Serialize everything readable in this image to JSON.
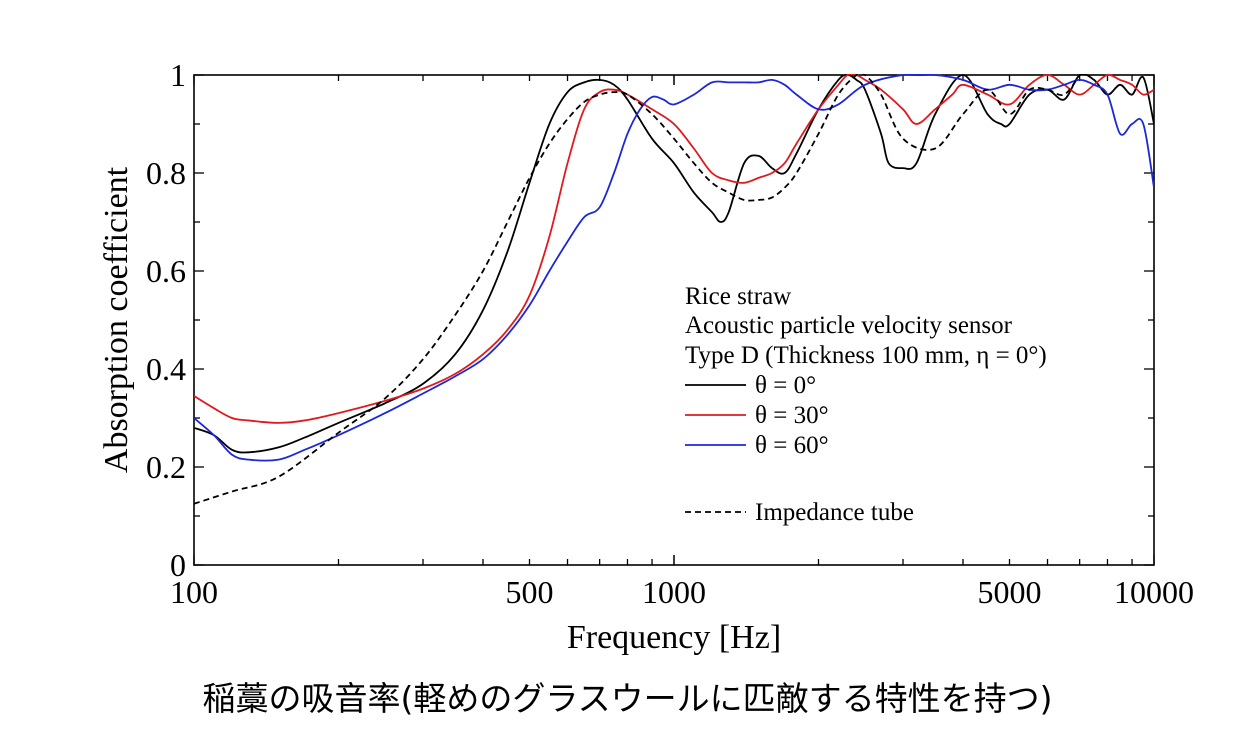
{
  "caption": "稲藁の吸音率(軽めのグラスウールに匹敵する特性を持つ)",
  "chart_data": {
    "type": "line",
    "title": "",
    "xlabel": "Frequency [Hz]",
    "ylabel": "Absorption coefficient",
    "xscale": "log",
    "xlim": [
      100,
      10000
    ],
    "ylim": [
      0,
      1
    ],
    "x_tick_labels": [
      "100",
      "500",
      "1000",
      "5000",
      "10000"
    ],
    "y_tick_labels": [
      "0",
      "0.2",
      "0.4",
      "0.6",
      "0.8",
      "1"
    ],
    "grid": false,
    "legend_placement": "center-right",
    "legend_header": [
      "Rice straw",
      "Acoustic particle velocity sensor",
      "Type D (Thickness 100 mm, η = 0°)"
    ],
    "series": [
      {
        "name": "θ = 0°",
        "color": "#000000",
        "dash": "solid",
        "x": [
          100,
          110,
          120,
          130,
          150,
          170,
          200,
          250,
          300,
          350,
          400,
          450,
          500,
          550,
          600,
          650,
          700,
          750,
          800,
          900,
          1000,
          1100,
          1200,
          1250,
          1300,
          1400,
          1500,
          1600,
          1700,
          1800,
          2000,
          2200,
          2300,
          2400,
          2500,
          2700,
          2800,
          3000,
          3200,
          3500,
          4000,
          4500,
          4800,
          5000,
          5500,
          6000,
          6500,
          7000,
          7500,
          8000,
          8500,
          9000,
          9500,
          10000
        ],
        "y": [
          0.28,
          0.265,
          0.235,
          0.23,
          0.24,
          0.26,
          0.29,
          0.33,
          0.37,
          0.43,
          0.52,
          0.64,
          0.78,
          0.9,
          0.965,
          0.985,
          0.99,
          0.98,
          0.95,
          0.87,
          0.82,
          0.76,
          0.72,
          0.7,
          0.72,
          0.82,
          0.835,
          0.81,
          0.8,
          0.84,
          0.93,
          0.99,
          1.0,
          0.99,
          0.97,
          0.88,
          0.82,
          0.81,
          0.82,
          0.92,
          1.0,
          0.92,
          0.9,
          0.9,
          0.96,
          0.97,
          0.95,
          1.0,
          0.99,
          0.96,
          0.98,
          0.96,
          0.995,
          0.9
        ]
      },
      {
        "name": "θ = 30°",
        "color": "#e0191e",
        "dash": "solid",
        "x": [
          100,
          110,
          120,
          130,
          150,
          170,
          200,
          250,
          300,
          350,
          400,
          450,
          500,
          550,
          600,
          650,
          700,
          750,
          800,
          900,
          1000,
          1100,
          1200,
          1300,
          1400,
          1500,
          1600,
          1700,
          1800,
          2000,
          2200,
          2300,
          2400,
          2500,
          2700,
          3000,
          3200,
          3500,
          3800,
          4000,
          4500,
          5000,
          5500,
          6000,
          6500,
          7000,
          7500,
          8000,
          8500,
          9000,
          9500,
          10000
        ],
        "y": [
          0.345,
          0.32,
          0.3,
          0.295,
          0.29,
          0.295,
          0.31,
          0.335,
          0.36,
          0.39,
          0.43,
          0.48,
          0.55,
          0.67,
          0.82,
          0.93,
          0.965,
          0.97,
          0.96,
          0.93,
          0.9,
          0.85,
          0.8,
          0.785,
          0.78,
          0.79,
          0.8,
          0.82,
          0.86,
          0.93,
          0.98,
          1.0,
          1.0,
          0.99,
          0.97,
          0.93,
          0.9,
          0.93,
          0.96,
          0.98,
          0.96,
          0.94,
          0.98,
          1.0,
          0.98,
          0.96,
          0.98,
          1.0,
          0.99,
          0.98,
          0.96,
          0.97
        ]
      },
      {
        "name": "θ = 60°",
        "color": "#1c27d8",
        "dash": "solid",
        "x": [
          100,
          110,
          120,
          130,
          150,
          170,
          200,
          250,
          300,
          350,
          400,
          450,
          500,
          550,
          600,
          650,
          700,
          750,
          800,
          850,
          900,
          950,
          1000,
          1100,
          1200,
          1300,
          1400,
          1500,
          1600,
          1700,
          1800,
          2000,
          2200,
          2500,
          3000,
          3500,
          4000,
          4500,
          5000,
          5500,
          6000,
          6500,
          7000,
          7500,
          8000,
          8500,
          9000,
          9500,
          10000
        ],
        "y": [
          0.3,
          0.265,
          0.225,
          0.215,
          0.215,
          0.235,
          0.265,
          0.31,
          0.35,
          0.385,
          0.42,
          0.47,
          0.53,
          0.6,
          0.66,
          0.71,
          0.73,
          0.8,
          0.88,
          0.93,
          0.955,
          0.95,
          0.94,
          0.96,
          0.985,
          0.985,
          0.985,
          0.985,
          0.99,
          0.98,
          0.96,
          0.93,
          0.94,
          0.98,
          1.0,
          1.0,
          0.99,
          0.97,
          0.98,
          0.97,
          0.97,
          0.98,
          0.99,
          0.98,
          0.96,
          0.88,
          0.9,
          0.9,
          0.77
        ]
      },
      {
        "name": "Impedance tube",
        "color": "#000000",
        "dash": "dashed",
        "x": [
          100,
          120,
          150,
          200,
          250,
          300,
          350,
          400,
          450,
          500,
          550,
          600,
          650,
          700,
          750,
          800,
          900,
          1000,
          1100,
          1200,
          1300,
          1400,
          1500,
          1600,
          1700,
          1800,
          2000,
          2200,
          2400,
          2500,
          2700,
          3000,
          3500,
          4000,
          4500,
          5000,
          5500,
          6000,
          6500,
          7000
        ],
        "y": [
          0.125,
          0.15,
          0.18,
          0.27,
          0.34,
          0.42,
          0.51,
          0.6,
          0.7,
          0.79,
          0.86,
          0.91,
          0.945,
          0.96,
          0.965,
          0.96,
          0.92,
          0.87,
          0.82,
          0.78,
          0.76,
          0.745,
          0.745,
          0.75,
          0.77,
          0.8,
          0.88,
          0.96,
          1.0,
          1.0,
          0.96,
          0.87,
          0.85,
          0.92,
          0.97,
          0.92,
          0.97,
          0.97,
          0.96,
          1.0
        ]
      }
    ]
  }
}
